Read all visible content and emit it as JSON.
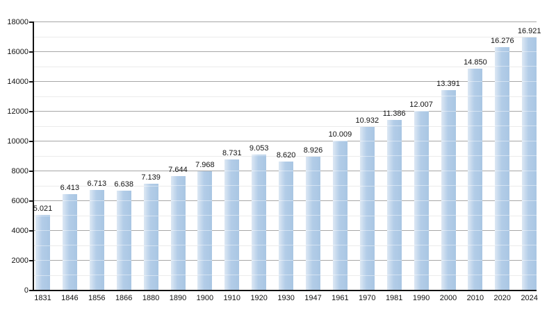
{
  "chart_data": {
    "type": "bar",
    "title": "",
    "xlabel": "",
    "ylabel": "",
    "categories": [
      "1831",
      "1846",
      "1856",
      "1866",
      "1880",
      "1890",
      "1900",
      "1910",
      "1920",
      "1930",
      "1947",
      "1961",
      "1970",
      "1981",
      "1990",
      "2000",
      "2010",
      "2020",
      "2024"
    ],
    "values": [
      5021,
      6413,
      6713,
      6638,
      7139,
      7644,
      7968,
      8731,
      9053,
      8620,
      8926,
      10009,
      10932,
      11386,
      12007,
      13391,
      14850,
      16276,
      16921
    ],
    "value_labels": [
      "5.021",
      "6.413",
      "6.713",
      "6.638",
      "7.139",
      "7.644",
      "7.968",
      "8.731",
      "9.053",
      "8.620",
      "8.926",
      "10.009",
      "10.932",
      "11.386",
      "12.007",
      "13.391",
      "14.850",
      "16.276",
      "16.921"
    ],
    "ylim": [
      0,
      18000
    ],
    "y_major_step": 2000,
    "y_minor_step": 1000,
    "y_tick_labels": [
      "0",
      "2000",
      "4000",
      "6000",
      "8000",
      "10000",
      "12000",
      "14000",
      "16000",
      "18000"
    ],
    "grid": "on",
    "legend_position": "none",
    "colors": {
      "bar_fill": "#a9c6e3",
      "bar_fill_light": "#dde8f4",
      "major_grid": "#a6a6a6",
      "minor_grid": "#ebebeb",
      "axis": "#111111",
      "text": "#111111",
      "background": "#ffffff"
    }
  }
}
